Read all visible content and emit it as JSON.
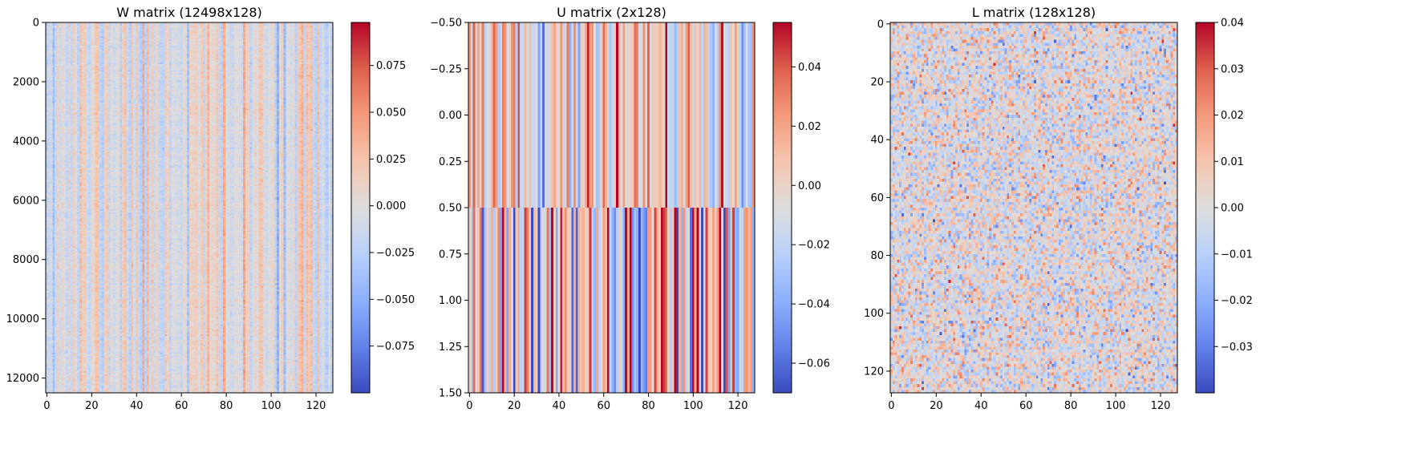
{
  "chart_data": [
    {
      "type": "heatmap",
      "title": "W matrix (12498x128)",
      "rows": 12498,
      "cols": 128,
      "xlim": [
        -0.5,
        127.5
      ],
      "ylim": [
        12497.5,
        -0.5
      ],
      "x_ticks": [
        0,
        20,
        40,
        60,
        80,
        100,
        120
      ],
      "y_ticks": [
        0,
        2000,
        4000,
        6000,
        8000,
        10000,
        12000
      ],
      "colormap": "coolwarm",
      "colorbar": {
        "vmin": -0.1,
        "vmax": 0.098,
        "ticks": [
          -0.075,
          -0.05,
          -0.025,
          0.0,
          0.025,
          0.05,
          0.075
        ],
        "tick_labels": [
          "−0.075",
          "−0.050",
          "−0.025",
          "0.000",
          "0.025",
          "0.050",
          "0.075"
        ]
      },
      "pattern": "column stripes, weak vertical variation, values mostly within ±0.03",
      "seed": 11
    },
    {
      "type": "heatmap",
      "title": "U matrix (2x128)",
      "rows": 2,
      "cols": 128,
      "xlim": [
        -0.5,
        127.5
      ],
      "ylim": [
        1.5,
        -0.5
      ],
      "x_ticks": [
        0,
        20,
        40,
        60,
        80,
        100,
        120
      ],
      "y_ticks": [
        -0.5,
        -0.25,
        0.0,
        0.25,
        0.5,
        0.75,
        1.0,
        1.25,
        1.5
      ],
      "y_tick_labels": [
        "−0.50",
        "−0.25",
        "0.00",
        "0.25",
        "0.50",
        "0.75",
        "1.00",
        "1.25",
        "1.50"
      ],
      "colormap": "coolwarm",
      "colorbar": {
        "vmin": -0.07,
        "vmax": 0.055,
        "ticks": [
          -0.06,
          -0.04,
          -0.02,
          0.0,
          0.02,
          0.04
        ],
        "tick_labels": [
          "−0.06",
          "−0.04",
          "−0.02",
          "0.00",
          "0.02",
          "0.04"
        ]
      },
      "pattern": "row 0 moderate values, row 1 larger magnitude values",
      "seed": 29
    },
    {
      "type": "heatmap",
      "title": "L matrix (128x128)",
      "rows": 128,
      "cols": 128,
      "xlim": [
        -0.5,
        127.5
      ],
      "ylim": [
        127.5,
        -0.5
      ],
      "x_ticks": [
        0,
        20,
        40,
        60,
        80,
        100,
        120
      ],
      "y_ticks": [
        0,
        20,
        40,
        60,
        80,
        100,
        120
      ],
      "colormap": "coolwarm",
      "colorbar": {
        "vmin": -0.04,
        "vmax": 0.04,
        "ticks": [
          -0.03,
          -0.02,
          -0.01,
          0.0,
          0.01,
          0.02,
          0.03,
          0.04
        ],
        "tick_labels": [
          "−0.03",
          "−0.02",
          "−0.01",
          "0.00",
          "0.01",
          "0.02",
          "0.03",
          "0.04"
        ]
      },
      "pattern": "random noise, values roughly within ±0.02",
      "seed": 53
    }
  ]
}
